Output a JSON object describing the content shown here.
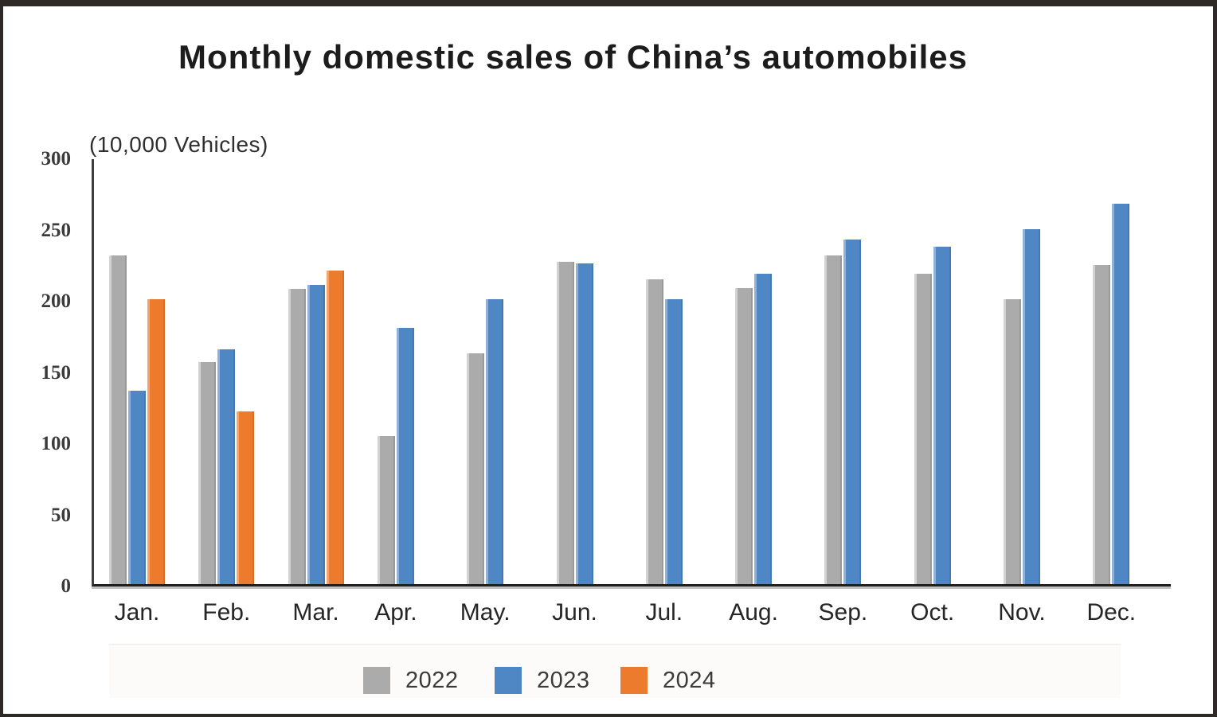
{
  "chart_data": {
    "type": "bar",
    "title": "Monthly domestic sales of China’s automobiles",
    "unit_label": "(10,000 Vehicles)",
    "categories": [
      "Jan.",
      "Feb.",
      "Mar.",
      "Apr.",
      "May.",
      "Jun.",
      "Jul.",
      "Aug.",
      "Sep.",
      "Oct.",
      "Nov.",
      "Dec."
    ],
    "series": [
      {
        "name": "2022",
        "color": "#ababab",
        "color_light": "#d2d2d2",
        "values": [
          231,
          156,
          207,
          104,
          162,
          226,
          214,
          208,
          231,
          218,
          200,
          224
        ]
      },
      {
        "name": "2023",
        "color": "#4e87c4",
        "color_light": "#8fb2dc",
        "values": [
          136,
          165,
          210,
          180,
          200,
          225,
          200,
          218,
          242,
          237,
          249,
          267
        ]
      },
      {
        "name": "2024",
        "color": "#ec7b2e",
        "color_light": "#f5a56c",
        "values": [
          200,
          121,
          220,
          null,
          null,
          null,
          null,
          null,
          null,
          null,
          null,
          null
        ]
      }
    ],
    "xlabel": "",
    "ylabel": "(10,000 Vehicles)",
    "ylim": [
      0,
      300
    ],
    "yticks": [
      0,
      50,
      100,
      150,
      200,
      250,
      300
    ],
    "grid": false,
    "legend_position": "bottom"
  }
}
